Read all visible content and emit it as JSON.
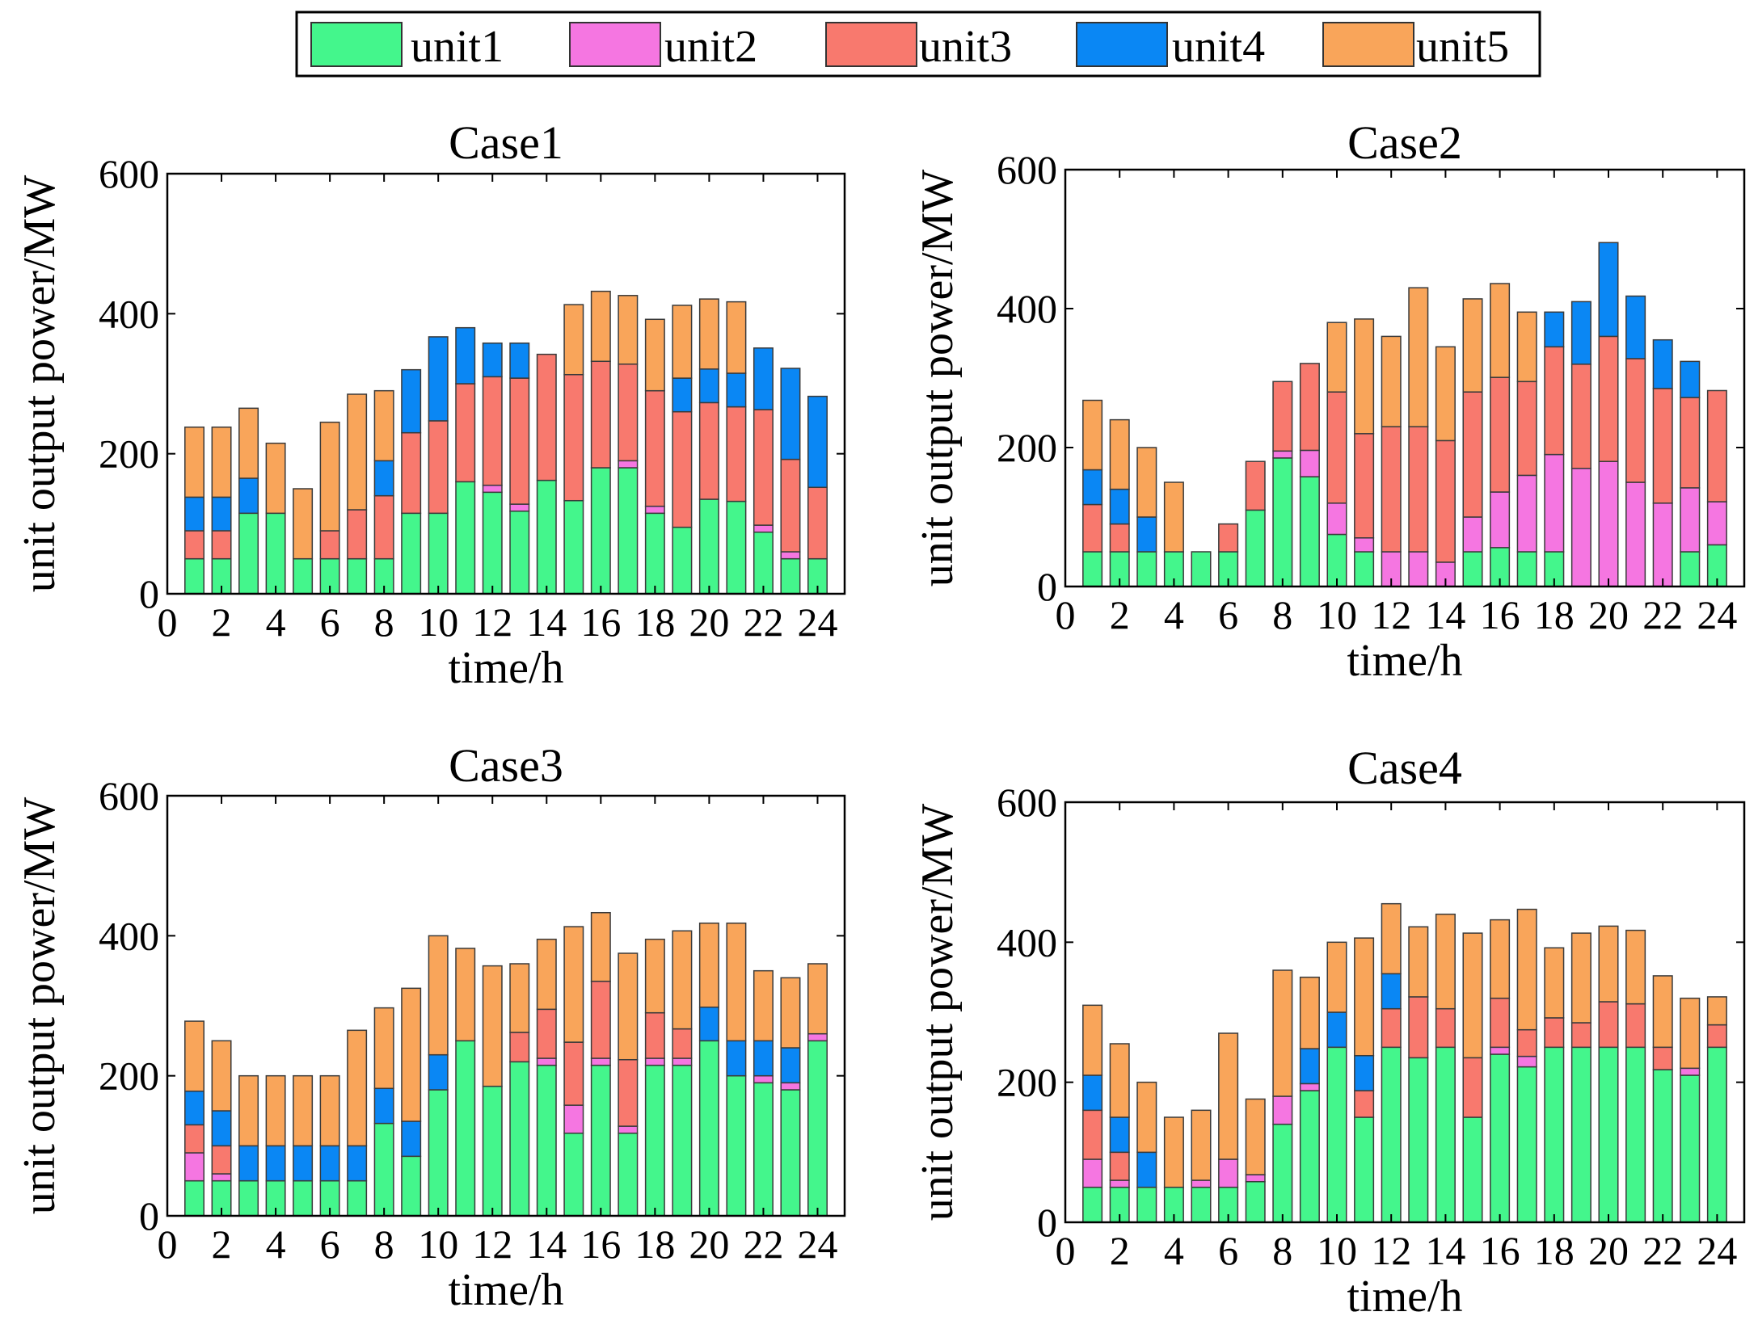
{
  "legend": {
    "items": [
      {
        "name": "unit1",
        "color": "#44F68C"
      },
      {
        "name": "unit2",
        "color": "#F576E1"
      },
      {
        "name": "unit3",
        "color": "#F8796E"
      },
      {
        "name": "unit4",
        "color": "#0A87F4"
      },
      {
        "name": "unit5",
        "color": "#F9A55A"
      }
    ]
  },
  "chart_data": [
    {
      "type": "bar",
      "stacked": true,
      "title": "Case1",
      "xlabel": "time/h",
      "ylabel": "unit output power/MW",
      "xlim": [
        0,
        25
      ],
      "ylim": [
        0,
        600
      ],
      "xticks": [
        0,
        2,
        4,
        6,
        8,
        10,
        12,
        14,
        16,
        18,
        20,
        22,
        24
      ],
      "yticks": [
        0,
        200,
        400,
        600
      ],
      "categories": [
        1,
        2,
        3,
        4,
        5,
        6,
        7,
        8,
        9,
        10,
        11,
        12,
        13,
        14,
        15,
        16,
        17,
        18,
        19,
        20,
        21,
        22,
        23,
        24
      ],
      "series": [
        {
          "name": "unit1",
          "values": [
            50,
            50,
            115,
            115,
            50,
            50,
            50,
            50,
            115,
            115,
            160,
            145,
            118,
            162,
            133,
            180,
            180,
            115,
            95,
            135,
            132,
            88,
            50,
            50
          ]
        },
        {
          "name": "unit2",
          "values": [
            0,
            0,
            0,
            0,
            0,
            0,
            0,
            0,
            0,
            0,
            0,
            10,
            10,
            0,
            0,
            0,
            10,
            10,
            0,
            0,
            0,
            10,
            10,
            0
          ]
        },
        {
          "name": "unit3",
          "values": [
            40,
            40,
            0,
            0,
            0,
            40,
            70,
            90,
            115,
            132,
            140,
            155,
            180,
            180,
            180,
            152,
            138,
            165,
            165,
            138,
            135,
            165,
            132,
            102
          ]
        },
        {
          "name": "unit4",
          "values": [
            48,
            48,
            50,
            0,
            0,
            0,
            0,
            50,
            90,
            120,
            80,
            48,
            50,
            0,
            0,
            0,
            0,
            0,
            48,
            48,
            48,
            88,
            130,
            130
          ]
        },
        {
          "name": "unit5",
          "values": [
            100,
            100,
            100,
            100,
            100,
            155,
            165,
            100,
            0,
            0,
            0,
            0,
            0,
            0,
            100,
            100,
            98,
            102,
            104,
            100,
            102,
            0,
            0,
            0
          ]
        }
      ]
    },
    {
      "type": "bar",
      "stacked": true,
      "title": "Case2",
      "xlabel": "time/h",
      "ylabel": "unit output power/MW",
      "xlim": [
        0,
        25
      ],
      "ylim": [
        0,
        600
      ],
      "xticks": [
        0,
        2,
        4,
        6,
        8,
        10,
        12,
        14,
        16,
        18,
        20,
        22,
        24
      ],
      "yticks": [
        0,
        200,
        400,
        600
      ],
      "categories": [
        1,
        2,
        3,
        4,
        5,
        6,
        7,
        8,
        9,
        10,
        11,
        12,
        13,
        14,
        15,
        16,
        17,
        18,
        19,
        20,
        21,
        22,
        23,
        24
      ],
      "series": [
        {
          "name": "unit1",
          "values": [
            50,
            50,
            50,
            50,
            50,
            50,
            110,
            185,
            158,
            75,
            50,
            0,
            0,
            0,
            50,
            56,
            50,
            50,
            0,
            0,
            0,
            0,
            50,
            60
          ]
        },
        {
          "name": "unit2",
          "values": [
            0,
            0,
            0,
            0,
            0,
            0,
            0,
            10,
            38,
            45,
            20,
            50,
            50,
            35,
            50,
            80,
            110,
            140,
            170,
            180,
            150,
            120,
            92,
            62
          ]
        },
        {
          "name": "unit3",
          "values": [
            68,
            40,
            0,
            0,
            0,
            40,
            70,
            100,
            125,
            160,
            150,
            180,
            180,
            175,
            180,
            165,
            135,
            155,
            150,
            180,
            178,
            165,
            130,
            160
          ]
        },
        {
          "name": "unit4",
          "values": [
            50,
            50,
            50,
            0,
            0,
            0,
            0,
            0,
            0,
            0,
            0,
            0,
            0,
            0,
            0,
            0,
            0,
            50,
            90,
            135,
            90,
            70,
            52,
            0
          ]
        },
        {
          "name": "unit5",
          "values": [
            100,
            100,
            100,
            100,
            0,
            0,
            0,
            0,
            0,
            100,
            165,
            130,
            200,
            135,
            134,
            135,
            100,
            0,
            0,
            0,
            0,
            0,
            0,
            0
          ]
        }
      ]
    },
    {
      "type": "bar",
      "stacked": true,
      "title": "Case3",
      "xlabel": "time/h",
      "ylabel": "unit output power/MW",
      "xlim": [
        0,
        25
      ],
      "ylim": [
        0,
        600
      ],
      "xticks": [
        0,
        2,
        4,
        6,
        8,
        10,
        12,
        14,
        16,
        18,
        20,
        22,
        24
      ],
      "yticks": [
        0,
        200,
        400,
        600
      ],
      "categories": [
        1,
        2,
        3,
        4,
        5,
        6,
        7,
        8,
        9,
        10,
        11,
        12,
        13,
        14,
        15,
        16,
        17,
        18,
        19,
        20,
        21,
        22,
        23,
        24
      ],
      "series": [
        {
          "name": "unit1",
          "values": [
            50,
            50,
            50,
            50,
            50,
            50,
            50,
            132,
            85,
            180,
            250,
            185,
            220,
            215,
            118,
            215,
            118,
            215,
            215,
            250,
            200,
            190,
            180,
            250
          ]
        },
        {
          "name": "unit2",
          "values": [
            40,
            10,
            0,
            0,
            0,
            0,
            0,
            0,
            0,
            0,
            0,
            0,
            0,
            10,
            40,
            10,
            10,
            10,
            10,
            0,
            0,
            10,
            10,
            10
          ]
        },
        {
          "name": "unit3",
          "values": [
            40,
            40,
            0,
            0,
            0,
            0,
            0,
            0,
            0,
            0,
            0,
            0,
            42,
            70,
            90,
            110,
            95,
            65,
            42,
            0,
            0,
            0,
            0,
            0
          ]
        },
        {
          "name": "unit4",
          "values": [
            48,
            50,
            50,
            50,
            50,
            50,
            50,
            50,
            50,
            50,
            0,
            0,
            0,
            0,
            0,
            0,
            0,
            0,
            0,
            48,
            50,
            50,
            50,
            0
          ]
        },
        {
          "name": "unit5",
          "values": [
            100,
            100,
            100,
            100,
            100,
            100,
            165,
            115,
            190,
            170,
            132,
            172,
            98,
            100,
            165,
            98,
            152,
            105,
            140,
            120,
            168,
            100,
            100,
            100
          ]
        }
      ]
    },
    {
      "type": "bar",
      "stacked": true,
      "title": "Case4",
      "xlabel": "time/h",
      "ylabel": "unit output power/MW",
      "xlim": [
        0,
        25
      ],
      "ylim": [
        0,
        600
      ],
      "xticks": [
        0,
        2,
        4,
        6,
        8,
        10,
        12,
        14,
        16,
        18,
        20,
        22,
        24
      ],
      "yticks": [
        0,
        200,
        400,
        600
      ],
      "categories": [
        1,
        2,
        3,
        4,
        5,
        6,
        7,
        8,
        9,
        10,
        11,
        12,
        13,
        14,
        15,
        16,
        17,
        18,
        19,
        20,
        21,
        22,
        23,
        24
      ],
      "series": [
        {
          "name": "unit1",
          "values": [
            50,
            50,
            50,
            50,
            50,
            50,
            58,
            140,
            188,
            250,
            150,
            250,
            235,
            250,
            150,
            240,
            222,
            250,
            250,
            250,
            250,
            218,
            210,
            250
          ]
        },
        {
          "name": "unit2",
          "values": [
            40,
            10,
            0,
            0,
            10,
            40,
            10,
            40,
            10,
            0,
            0,
            0,
            0,
            0,
            0,
            10,
            15,
            0,
            0,
            0,
            0,
            0,
            10,
            0
          ]
        },
        {
          "name": "unit3",
          "values": [
            70,
            40,
            0,
            0,
            0,
            0,
            0,
            0,
            0,
            0,
            38,
            55,
            87,
            55,
            85,
            70,
            38,
            42,
            35,
            65,
            62,
            32,
            0,
            32
          ]
        },
        {
          "name": "unit4",
          "values": [
            50,
            50,
            50,
            0,
            0,
            0,
            0,
            0,
            50,
            50,
            50,
            50,
            0,
            0,
            0,
            0,
            0,
            0,
            0,
            0,
            0,
            0,
            0,
            0
          ]
        },
        {
          "name": "unit5",
          "values": [
            100,
            105,
            100,
            100,
            100,
            180,
            108,
            180,
            102,
            100,
            168,
            100,
            100,
            135,
            178,
            112,
            172,
            100,
            128,
            108,
            105,
            102,
            100,
            40
          ]
        }
      ]
    }
  ]
}
